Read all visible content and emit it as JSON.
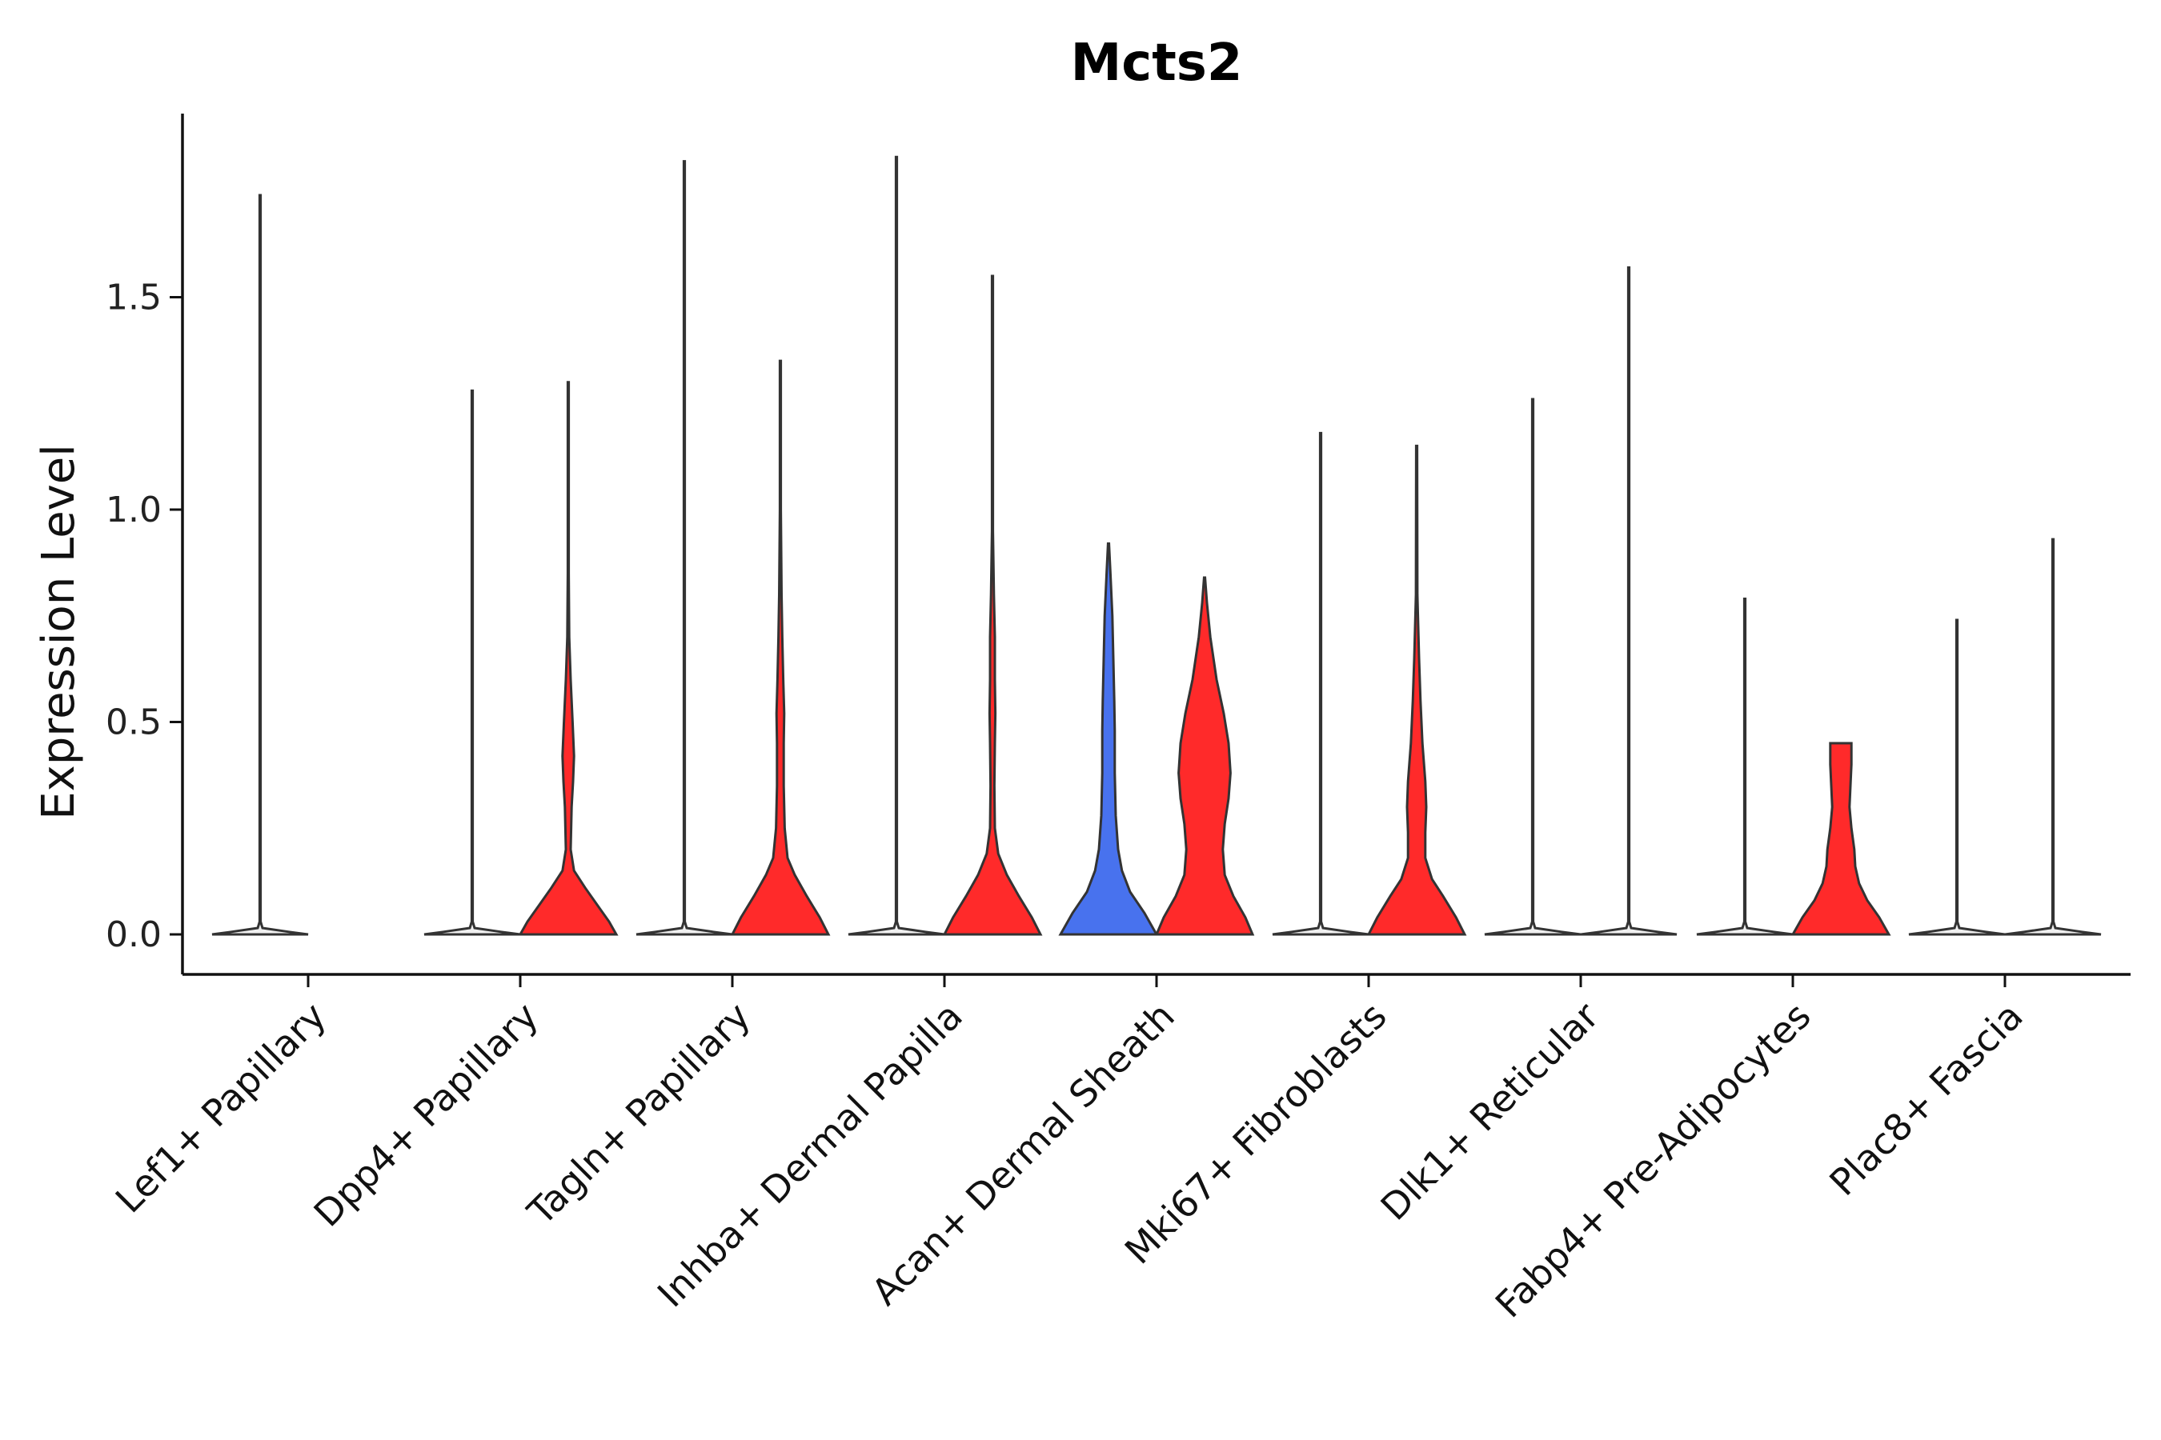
{
  "chart_data": {
    "type": "violin",
    "title": "Mcts2",
    "xlabel": "",
    "ylabel": "Expression Level",
    "ylim": [
      -0.09,
      1.94
    ],
    "yticks": [
      0.0,
      0.5,
      1.0,
      1.5
    ],
    "ytick_labels": [
      "0.0",
      "0.5",
      "1.0",
      "1.5"
    ],
    "categories": [
      "Lef1+ Papillary",
      "Dpp4+ Papillary",
      "Tagln+ Papillary",
      "Inhba+ Dermal Papilla",
      "Acan+ Dermal Sheath",
      "Mki67+ Fibroblasts",
      "Dlk1+ Reticular",
      "Fabp4+ Pre-Adipocytes",
      "Plac8+ Fascia"
    ],
    "series": [
      {
        "name": "group-1",
        "color": "#eeeeee",
        "max": [
          1.74,
          1.28,
          1.82,
          1.83,
          0.92,
          1.18,
          1.26,
          0.79,
          0.74
        ]
      },
      {
        "name": "group-2",
        "color": "#ff2a2a",
        "max": [
          null,
          1.3,
          1.35,
          1.55,
          0.84,
          1.15,
          1.57,
          0.45,
          0.93
        ]
      }
    ],
    "violins": [
      {
        "category": "Lef1+ Papillary",
        "group": "group-1",
        "color": "#f0f0f0",
        "max": 1.74,
        "profile": [
          [
            0,
            1.0
          ],
          [
            0.006,
            0.6
          ],
          [
            0.015,
            0.05
          ],
          [
            0.03,
            0.01
          ],
          [
            1.74,
            0.004
          ]
        ]
      },
      {
        "category": "Dpp4+ Papillary",
        "group": "group-1",
        "color": "#f0f0f0",
        "max": 1.28,
        "profile": [
          [
            0,
            1.0
          ],
          [
            0.006,
            0.6
          ],
          [
            0.015,
            0.05
          ],
          [
            0.03,
            0.01
          ],
          [
            1.28,
            0.004
          ]
        ]
      },
      {
        "category": "Dpp4+ Papillary",
        "group": "group-2",
        "color": "#ff2a2a",
        "max": 1.3,
        "profile": [
          [
            0,
            1.0
          ],
          [
            0.03,
            0.85
          ],
          [
            0.07,
            0.6
          ],
          [
            0.11,
            0.35
          ],
          [
            0.15,
            0.12
          ],
          [
            0.2,
            0.05
          ],
          [
            0.3,
            0.07
          ],
          [
            0.36,
            0.1
          ],
          [
            0.42,
            0.12
          ],
          [
            0.5,
            0.09
          ],
          [
            0.6,
            0.05
          ],
          [
            0.7,
            0.02
          ],
          [
            0.85,
            0.01
          ],
          [
            1.3,
            0.004
          ]
        ]
      },
      {
        "category": "Tagln+ Papillary",
        "group": "group-1",
        "color": "#f0f0f0",
        "max": 1.82,
        "profile": [
          [
            0,
            1.0
          ],
          [
            0.006,
            0.6
          ],
          [
            0.015,
            0.05
          ],
          [
            0.03,
            0.01
          ],
          [
            1.82,
            0.004
          ]
        ]
      },
      {
        "category": "Tagln+ Papillary",
        "group": "group-2",
        "color": "#ff2a2a",
        "max": 1.35,
        "profile": [
          [
            0,
            1.0
          ],
          [
            0.04,
            0.82
          ],
          [
            0.09,
            0.55
          ],
          [
            0.14,
            0.3
          ],
          [
            0.18,
            0.15
          ],
          [
            0.25,
            0.09
          ],
          [
            0.35,
            0.07
          ],
          [
            0.45,
            0.07
          ],
          [
            0.52,
            0.08
          ],
          [
            0.6,
            0.06
          ],
          [
            0.7,
            0.04
          ],
          [
            0.8,
            0.025
          ],
          [
            1.0,
            0.01
          ],
          [
            1.35,
            0.004
          ]
        ]
      },
      {
        "category": "Inhba+ Dermal Papilla",
        "group": "group-1",
        "color": "#f0f0f0",
        "max": 1.83,
        "profile": [
          [
            0,
            1.0
          ],
          [
            0.006,
            0.6
          ],
          [
            0.015,
            0.05
          ],
          [
            0.03,
            0.01
          ],
          [
            1.83,
            0.004
          ]
        ]
      },
      {
        "category": "Inhba+ Dermal Papilla",
        "group": "group-2",
        "color": "#ff2a2a",
        "max": 1.55,
        "profile": [
          [
            0,
            1.0
          ],
          [
            0.04,
            0.82
          ],
          [
            0.09,
            0.55
          ],
          [
            0.14,
            0.3
          ],
          [
            0.19,
            0.12
          ],
          [
            0.25,
            0.05
          ],
          [
            0.35,
            0.04
          ],
          [
            0.45,
            0.05
          ],
          [
            0.52,
            0.06
          ],
          [
            0.6,
            0.05
          ],
          [
            0.7,
            0.05
          ],
          [
            0.8,
            0.03
          ],
          [
            0.95,
            0.01
          ],
          [
            1.55,
            0.004
          ]
        ]
      },
      {
        "category": "Acan+ Dermal Sheath",
        "group": "group-1",
        "color": "#4872ee",
        "max": 0.92,
        "profile": [
          [
            0,
            1.0
          ],
          [
            0.05,
            0.75
          ],
          [
            0.1,
            0.45
          ],
          [
            0.15,
            0.28
          ],
          [
            0.2,
            0.2
          ],
          [
            0.28,
            0.15
          ],
          [
            0.38,
            0.13
          ],
          [
            0.48,
            0.13
          ],
          [
            0.55,
            0.12
          ],
          [
            0.65,
            0.1
          ],
          [
            0.75,
            0.08
          ],
          [
            0.85,
            0.04
          ],
          [
            0.92,
            0.01
          ]
        ]
      },
      {
        "category": "Acan+ Dermal Sheath",
        "group": "group-2",
        "color": "#ff2a2a",
        "max": 0.84,
        "profile": [
          [
            0,
            1.0
          ],
          [
            0.04,
            0.85
          ],
          [
            0.09,
            0.6
          ],
          [
            0.14,
            0.42
          ],
          [
            0.2,
            0.38
          ],
          [
            0.26,
            0.42
          ],
          [
            0.32,
            0.5
          ],
          [
            0.38,
            0.54
          ],
          [
            0.45,
            0.5
          ],
          [
            0.52,
            0.4
          ],
          [
            0.6,
            0.25
          ],
          [
            0.7,
            0.12
          ],
          [
            0.78,
            0.05
          ],
          [
            0.84,
            0.01
          ]
        ]
      },
      {
        "category": "Mki67+ Fibroblasts",
        "group": "group-1",
        "color": "#f0f0f0",
        "max": 1.18,
        "profile": [
          [
            0,
            1.0
          ],
          [
            0.006,
            0.6
          ],
          [
            0.015,
            0.05
          ],
          [
            0.03,
            0.01
          ],
          [
            1.18,
            0.004
          ]
        ]
      },
      {
        "category": "Mki67+ Fibroblasts",
        "group": "group-2",
        "color": "#ff2a2a",
        "max": 1.15,
        "profile": [
          [
            0,
            1.0
          ],
          [
            0.04,
            0.82
          ],
          [
            0.09,
            0.55
          ],
          [
            0.13,
            0.32
          ],
          [
            0.18,
            0.18
          ],
          [
            0.24,
            0.18
          ],
          [
            0.3,
            0.2
          ],
          [
            0.36,
            0.18
          ],
          [
            0.45,
            0.12
          ],
          [
            0.55,
            0.08
          ],
          [
            0.65,
            0.05
          ],
          [
            0.8,
            0.015
          ],
          [
            1.15,
            0.004
          ]
        ]
      },
      {
        "category": "Dlk1+ Reticular",
        "group": "group-1",
        "color": "#f0f0f0",
        "max": 1.26,
        "profile": [
          [
            0,
            1.0
          ],
          [
            0.006,
            0.6
          ],
          [
            0.015,
            0.05
          ],
          [
            0.03,
            0.01
          ],
          [
            1.26,
            0.004
          ]
        ]
      },
      {
        "category": "Dlk1+ Reticular",
        "group": "group-2",
        "color": "#f0f0f0",
        "max": 1.57,
        "profile": [
          [
            0,
            1.0
          ],
          [
            0.006,
            0.6
          ],
          [
            0.015,
            0.05
          ],
          [
            0.03,
            0.01
          ],
          [
            1.57,
            0.004
          ]
        ]
      },
      {
        "category": "Fabp4+ Pre-Adipocytes",
        "group": "group-1",
        "color": "#f0f0f0",
        "max": 0.79,
        "profile": [
          [
            0,
            1.0
          ],
          [
            0.006,
            0.6
          ],
          [
            0.015,
            0.05
          ],
          [
            0.03,
            0.01
          ],
          [
            0.79,
            0.004
          ]
        ]
      },
      {
        "category": "Fabp4+ Pre-Adipocytes",
        "group": "group-2",
        "color": "#ff2a2a",
        "max": 0.45,
        "profile": [
          [
            0,
            1.0
          ],
          [
            0.04,
            0.8
          ],
          [
            0.08,
            0.55
          ],
          [
            0.12,
            0.38
          ],
          [
            0.16,
            0.3
          ],
          [
            0.2,
            0.28
          ],
          [
            0.25,
            0.22
          ],
          [
            0.3,
            0.18
          ],
          [
            0.35,
            0.2
          ],
          [
            0.4,
            0.22
          ],
          [
            0.45,
            0.22
          ]
        ]
      },
      {
        "category": "Plac8+ Fascia",
        "group": "group-1",
        "color": "#f0f0f0",
        "max": 0.74,
        "profile": [
          [
            0,
            1.0
          ],
          [
            0.006,
            0.6
          ],
          [
            0.015,
            0.05
          ],
          [
            0.03,
            0.01
          ],
          [
            0.74,
            0.004
          ]
        ]
      },
      {
        "category": "Plac8+ Fascia",
        "group": "group-2",
        "color": "#f0f0f0",
        "max": 0.93,
        "profile": [
          [
            0,
            1.0
          ],
          [
            0.006,
            0.6
          ],
          [
            0.015,
            0.05
          ],
          [
            0.03,
            0.01
          ],
          [
            0.93,
            0.004
          ]
        ]
      }
    ]
  }
}
